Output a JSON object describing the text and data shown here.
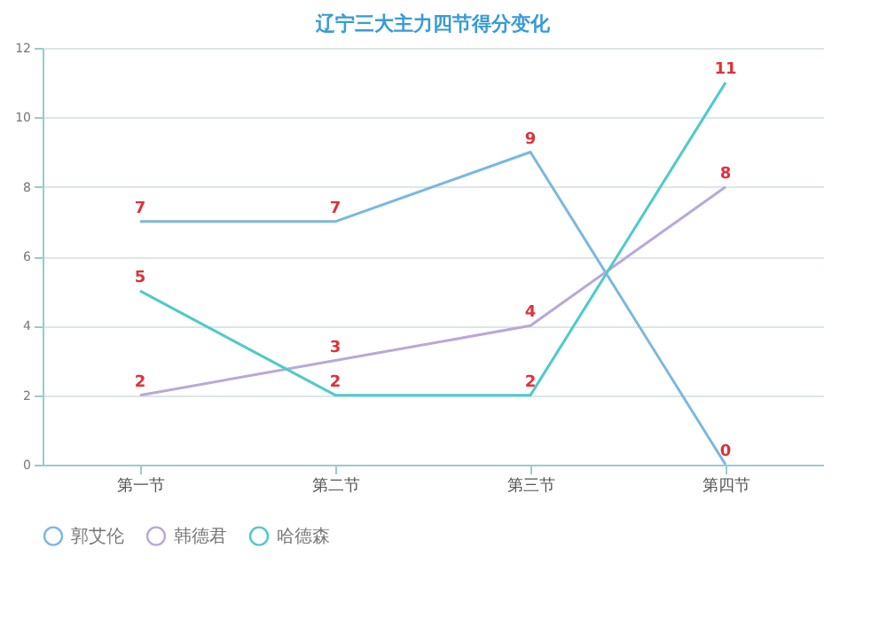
{
  "chart_data": {
    "type": "line",
    "title": "辽宁三大主力四节得分变化",
    "categories": [
      "第一节",
      "第二节",
      "第三节",
      "第四节"
    ],
    "series": [
      {
        "name": "郭艾伦",
        "color": "#7ab8e0",
        "values": [
          7,
          7,
          9,
          0
        ]
      },
      {
        "name": "韩德君",
        "color": "#b9a8d9",
        "values": [
          2,
          3,
          4,
          8
        ]
      },
      {
        "name": "哈德森",
        "color": "#4fcaca",
        "values": [
          5,
          2,
          2,
          11
        ]
      }
    ],
    "ylim": [
      0,
      12
    ],
    "yticks": [
      0,
      2,
      4,
      6,
      8,
      10,
      12
    ],
    "grid": "y",
    "legend": "bottom",
    "data_labels": true,
    "line_style": "solid"
  }
}
